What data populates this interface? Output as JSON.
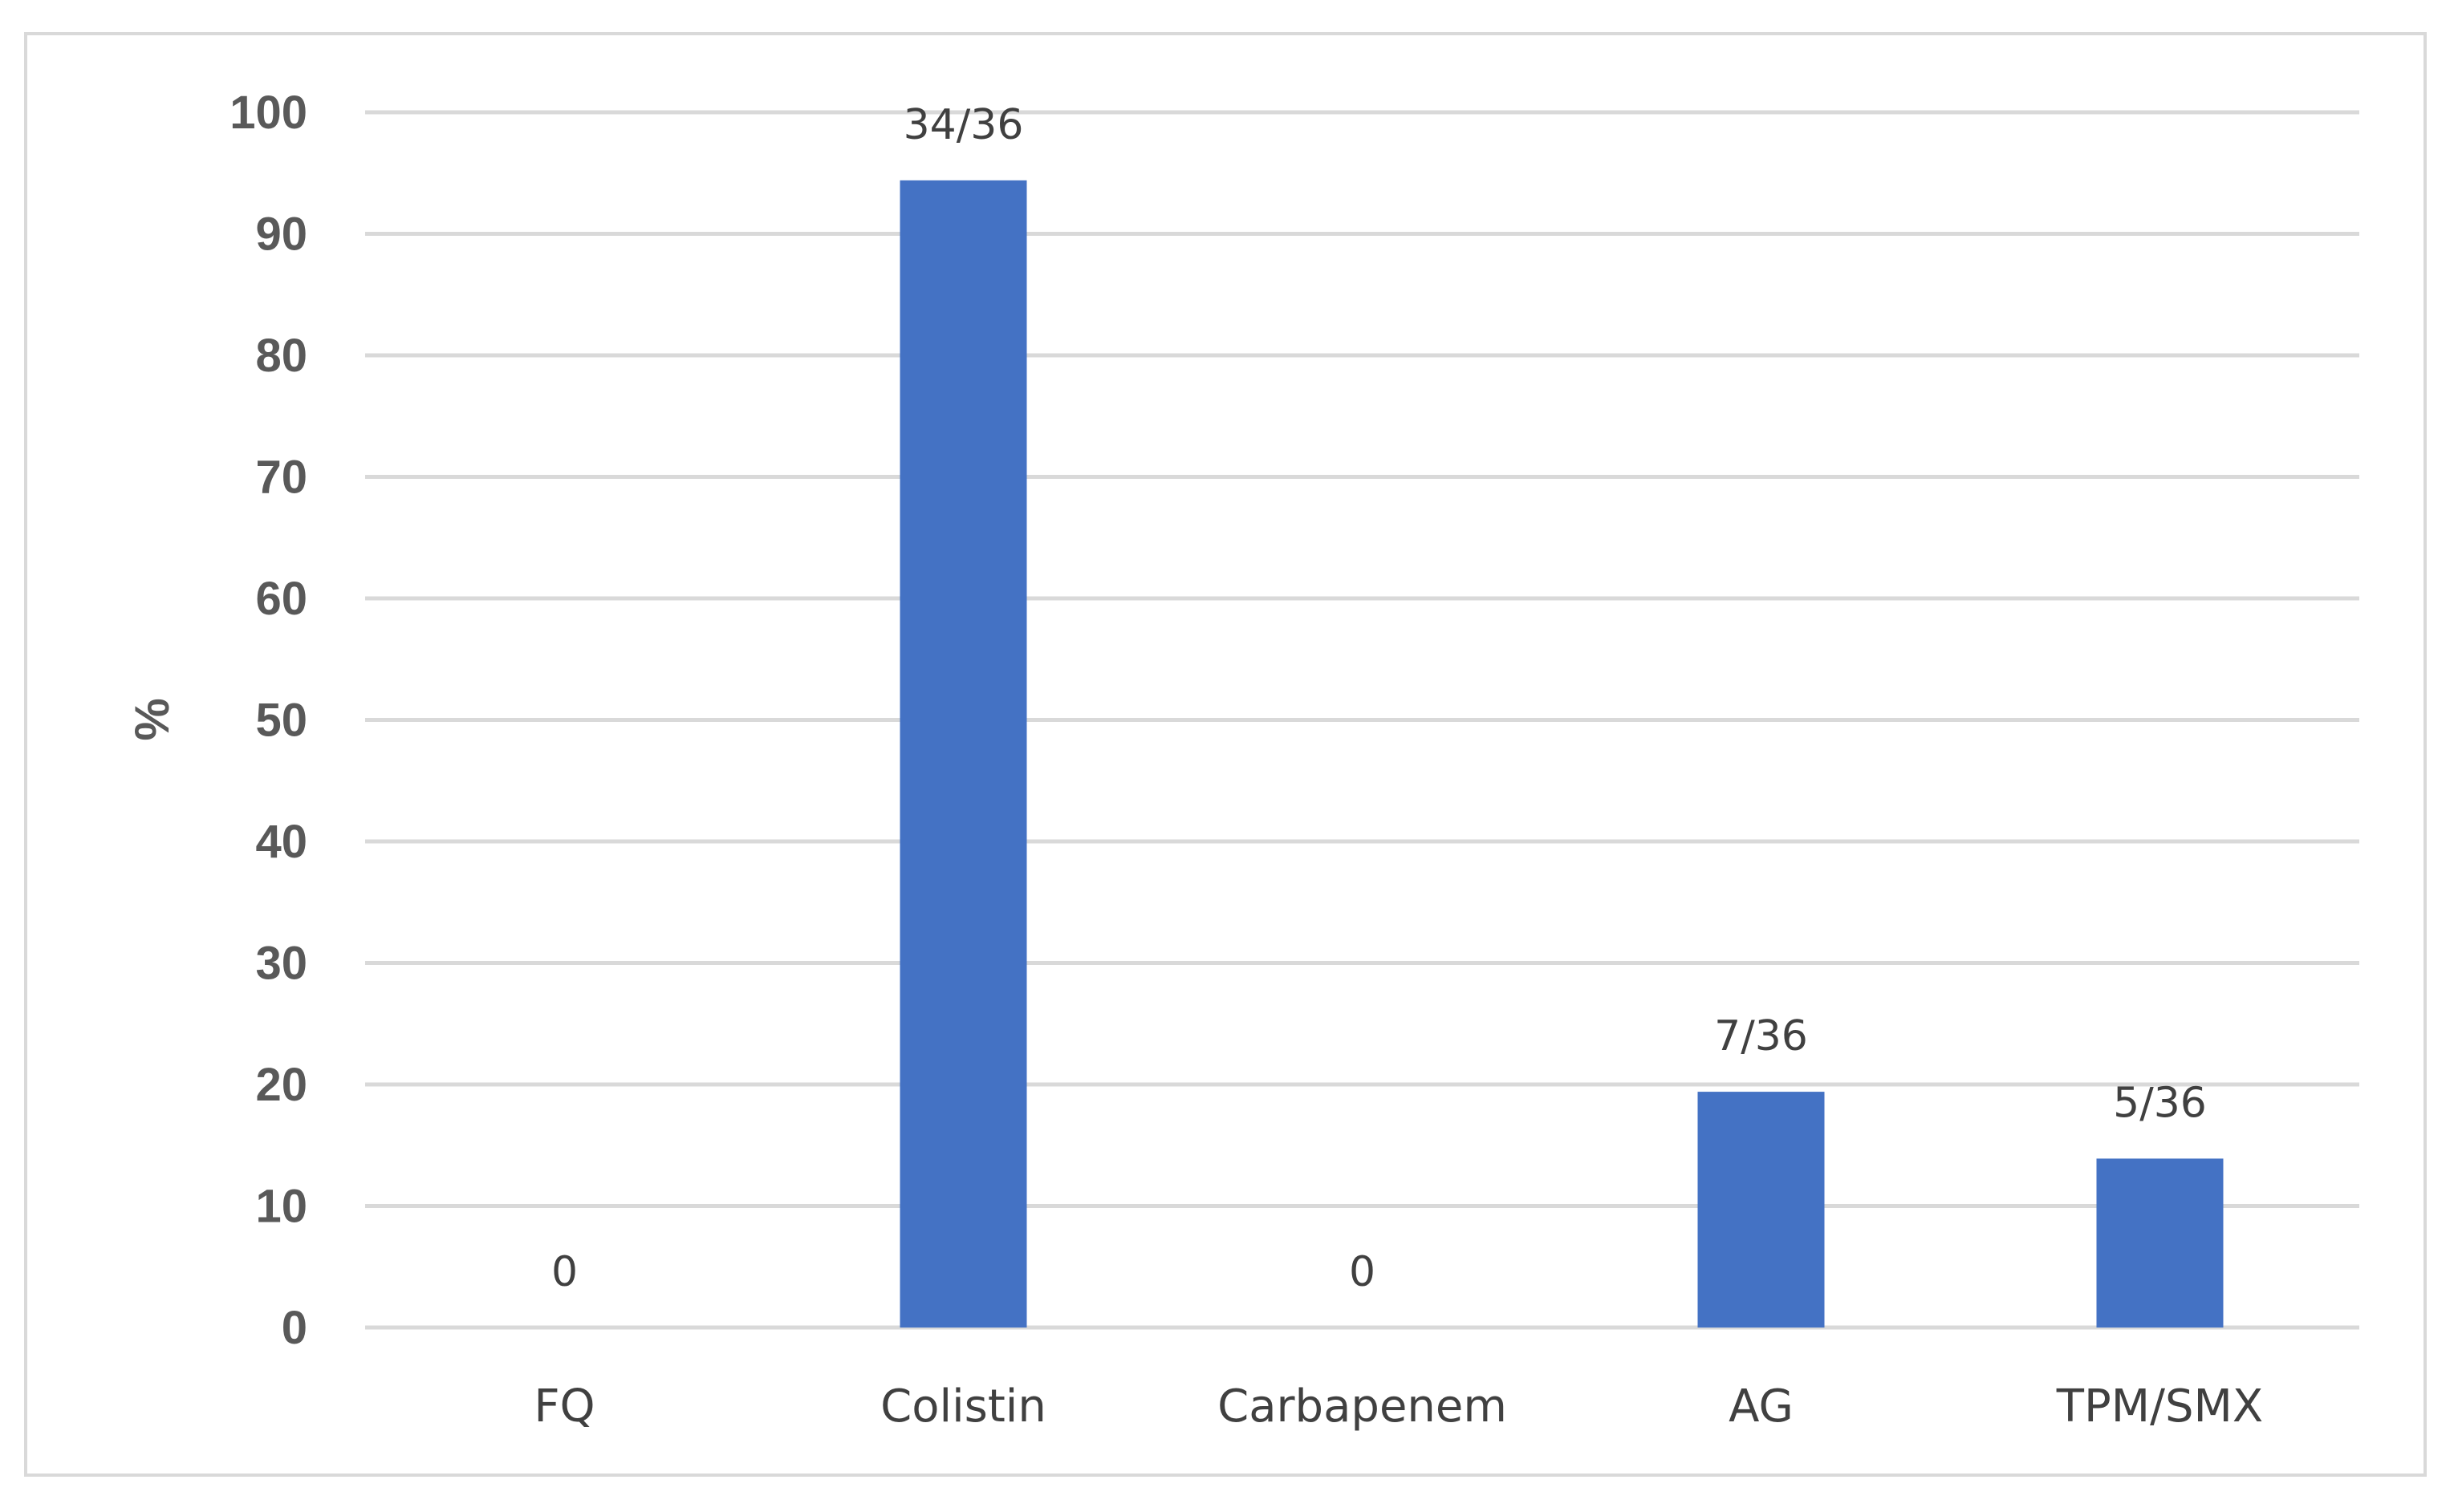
{
  "chart_data": {
    "type": "bar",
    "title": "",
    "xlabel": "",
    "ylabel": "%",
    "ylim": [
      0,
      100
    ],
    "yticks": [
      "0",
      "10",
      "20",
      "30",
      "40",
      "50",
      "60",
      "70",
      "80",
      "90",
      "100"
    ],
    "grid": true,
    "legend": "none",
    "categories": [
      "FQ",
      "Colistin",
      "Carbapenem",
      "AG",
      "TPM/SMX"
    ],
    "values": [
      0,
      94.4,
      0,
      19.4,
      13.9
    ],
    "data_labels": [
      "0",
      "34/36",
      "0",
      "7/36",
      "5/36"
    ],
    "colors": {
      "bar": "#4472c4",
      "grid": "#d9d9d9",
      "frame": "#d9d9d9"
    }
  }
}
